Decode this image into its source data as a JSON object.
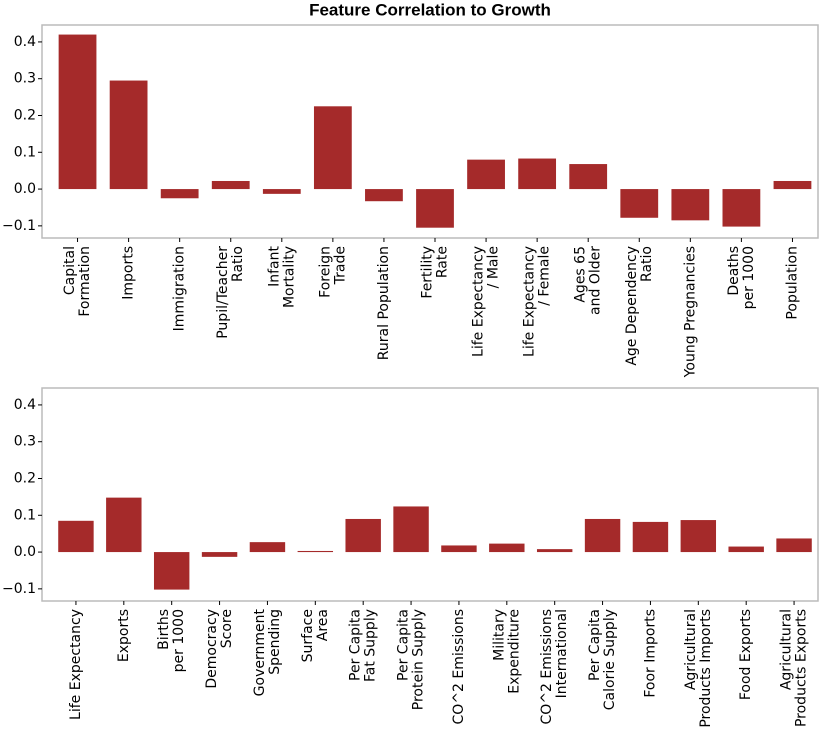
{
  "chart_data": [
    {
      "type": "bar",
      "title": "Feature Correlation to Growth",
      "color": "#a52a2a",
      "categories": [
        "Capital\nFormation",
        "Imports",
        "Immigration",
        "Pupil/Teacher\nRatio",
        "Infant\nMortality",
        "Foreign\nTrade",
        "Rural Population",
        "Fertility\nRate",
        "Life Expectancy\n/ Male",
        "Life Expectancy\n/ Female",
        "Ages 65\nand Older",
        "Age Dependency\nRatio",
        "Young Pregnancies",
        "Deaths\nper 1000",
        "Population"
      ],
      "values": [
        0.42,
        0.295,
        -0.025,
        0.022,
        -0.013,
        0.225,
        -0.033,
        -0.105,
        0.08,
        0.083,
        0.068,
        -0.078,
        -0.085,
        -0.102,
        0.022
      ],
      "ylim": [
        -0.133,
        0.446
      ],
      "yticks": [
        {
          "value": -0.1,
          "label": "−0.1"
        },
        {
          "value": 0,
          "label": "0.0"
        },
        0.1,
        0.2,
        0.3,
        0.4
      ]
    },
    {
      "type": "bar",
      "color": "#a52a2a",
      "categories": [
        "Life Expectancy",
        "Exports",
        "Births\nper 1000",
        "Democracy\nScore",
        "Government\nSpending",
        "Surface\nArea",
        "Per Capita\nFat Supply",
        "Per Capita\nProtein Supply",
        "CO^2 Emissions",
        "Military\nExpenditure",
        "CO^2 Emissions\nInternational",
        "Per Capita\nCalorie Supply",
        "Foor Imports",
        "Agricultural\nProducts Imports",
        "Food Exports",
        "Agricultural\nProducts Exports"
      ],
      "values": [
        0.085,
        0.148,
        -0.102,
        -0.013,
        0.027,
        0.003,
        0.09,
        0.124,
        0.018,
        0.023,
        0.008,
        0.09,
        0.082,
        0.087,
        0.015,
        0.037
      ],
      "ylim": [
        -0.133,
        0.446
      ],
      "yticks": [
        {
          "value": -0.1,
          "label": "−0.1"
        },
        {
          "value": 0,
          "label": "0.0"
        },
        0.1,
        0.2,
        0.3,
        0.4
      ]
    }
  ]
}
